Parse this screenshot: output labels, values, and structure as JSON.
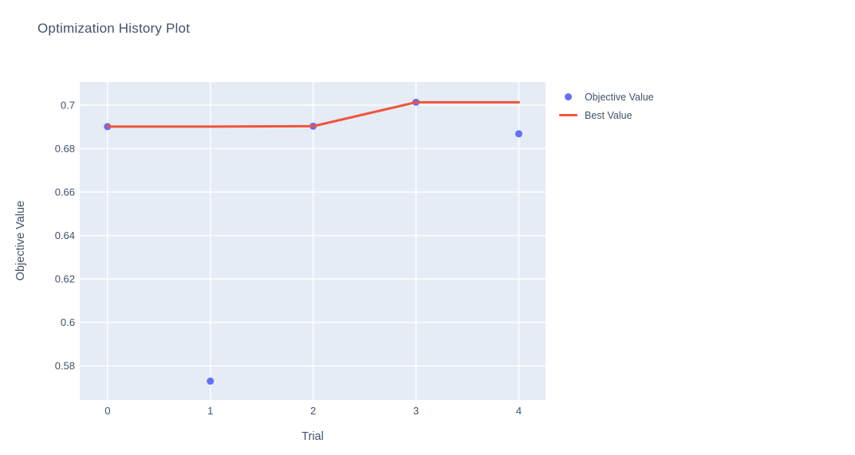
{
  "chart_data": {
    "type": "scatter",
    "title": "Optimization History Plot",
    "xlabel": "Trial",
    "ylabel": "Objective Value",
    "x": [
      0,
      1,
      2,
      3,
      4
    ],
    "series": [
      {
        "name": "Objective Value",
        "mode": "markers",
        "color": "#636efa",
        "values": [
          0.6901,
          0.573,
          0.6903,
          0.7013,
          0.6868
        ]
      },
      {
        "name": "Best Value",
        "mode": "line",
        "color": "#ef553b",
        "values": [
          0.6901,
          0.6901,
          0.6903,
          0.7013,
          0.7013
        ]
      }
    ],
    "xlim": [
      -0.27,
      4.26
    ],
    "ylim": [
      0.5643,
      0.7106
    ],
    "xticks": {
      "values": [
        0,
        1,
        2,
        3,
        4
      ],
      "labels": [
        "0",
        "1",
        "2",
        "3",
        "4"
      ]
    },
    "yticks": {
      "values": [
        0.58,
        0.6,
        0.62,
        0.64,
        0.66,
        0.68,
        0.7
      ],
      "labels": [
        "0.58",
        "0.6",
        "0.62",
        "0.64",
        "0.66",
        "0.68",
        "0.7"
      ]
    },
    "grid": true,
    "legend_position": "top-right-outside",
    "colors": {
      "plot_bg": "#e5ecf6",
      "grid": "#ffffff",
      "text": "#42526b",
      "marker": "#636efa",
      "line": "#ef553b"
    }
  }
}
